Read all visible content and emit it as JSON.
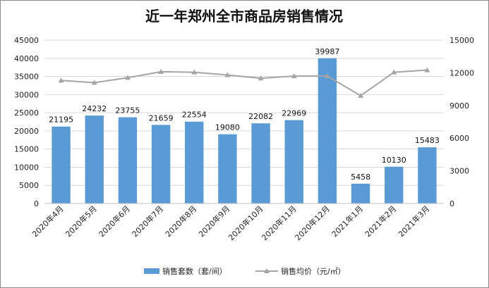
{
  "chart_data": {
    "type": "bar",
    "title": "近一年郑州全市商品房销售情况",
    "categories": [
      "2020年4月",
      "2020年5月",
      "2020年6月",
      "2020年7月",
      "2020年8月",
      "2020年9月",
      "2020年10月",
      "2020年11月",
      "2020年12月",
      "2021年1月",
      "2021年2月",
      "2021年3月"
    ],
    "series": [
      {
        "name": "销售套数（套/间）",
        "type": "bar",
        "axis": "left",
        "color": "#5b9bd5",
        "values": [
          21195,
          24232,
          23755,
          21659,
          22554,
          19080,
          22082,
          22969,
          39987,
          5458,
          10130,
          15483
        ],
        "data_labels": [
          "21195",
          "24232",
          "23755",
          "21659",
          "22554",
          "19080",
          "22082",
          "22969",
          "39987",
          "5458",
          "10130",
          "15483"
        ]
      },
      {
        "name": "销售均价（元/㎡）",
        "type": "line",
        "axis": "right",
        "color": "#a5a5a5",
        "values": [
          11300,
          11100,
          11550,
          12100,
          12050,
          11800,
          11500,
          11700,
          11700,
          9900,
          12050,
          12250
        ]
      }
    ],
    "y_left": {
      "ylim": [
        0,
        45000
      ],
      "ticks": [
        "0",
        "5000",
        "10000",
        "15000",
        "20000",
        "25000",
        "30000",
        "35000",
        "40000",
        "45000"
      ]
    },
    "y_right": {
      "ylim": [
        0,
        15000
      ],
      "ticks": [
        "0",
        "3000",
        "6000",
        "9000",
        "12000",
        "15000"
      ]
    },
    "grid": true,
    "legend_position": "bottom"
  }
}
